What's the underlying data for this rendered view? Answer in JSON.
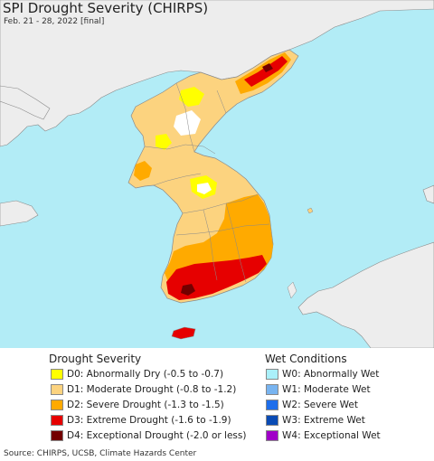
{
  "header": {
    "title": "SPI Drought Severity (CHIRPS)",
    "subtitle": "Feb. 21 - 28, 2022 [final]"
  },
  "colors": {
    "ocean": "#b2ecf6",
    "land_other": "#ededed",
    "border": "#8a8a8a",
    "D0": "#ffff00",
    "D1": "#fcd37f",
    "D2": "#ffaa00",
    "D3": "#e60000",
    "D4": "#730000",
    "W0": "#aaf0fa",
    "W1": "#78b4f0",
    "W2": "#1e6eeb",
    "W3": "#0a4bb4",
    "W4": "#a000c8"
  },
  "legend": {
    "drought_heading": "Drought Severity",
    "drought_items": [
      {
        "label": "D0: Abnormally Dry (-0.5 to -0.7)",
        "color": "#ffff00"
      },
      {
        "label": "D1: Moderate Drought (-0.8 to -1.2)",
        "color": "#fcd37f"
      },
      {
        "label": "D2: Severe Drought (-1.3 to -1.5)",
        "color": "#ffaa00"
      },
      {
        "label": "D3: Extreme Drought (-1.6 to -1.9)",
        "color": "#e60000"
      },
      {
        "label": "D4: Exceptional Drought (-2.0 or less)",
        "color": "#730000"
      }
    ],
    "wet_heading": "Wet Conditions",
    "wet_items": [
      {
        "label": "W0: Abnormally Wet",
        "color": "#aaf0fa"
      },
      {
        "label": "W1: Moderate Wet",
        "color": "#78b4f0"
      },
      {
        "label": "W2: Severe Wet",
        "color": "#1e6eeb"
      },
      {
        "label": "W3: Extreme Wet",
        "color": "#0a4bb4"
      },
      {
        "label": "W4: Exceptional Wet",
        "color": "#a000c8"
      }
    ]
  },
  "footer": {
    "source": "Source: CHIRPS, UCSB, Climate Hazards Center"
  }
}
